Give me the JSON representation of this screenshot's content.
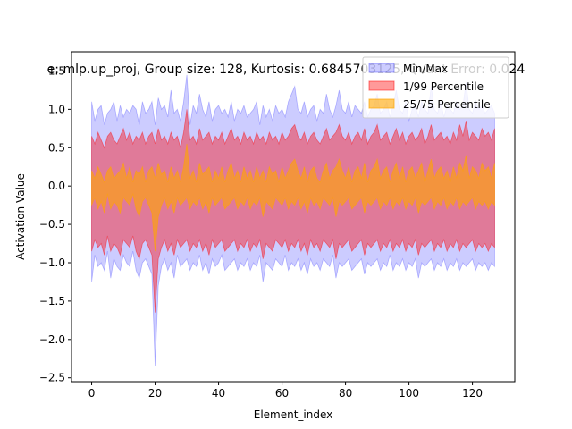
{
  "chart_data": {
    "type": "area",
    "title": "e: mlp.up_proj,  Group size: 128, Kurtosis: 0.6845703125, Quant Error: 0.024",
    "xlabel": "Element_index",
    "ylabel": "Activation Value",
    "xlim": [
      -6.35,
      133.35
    ],
    "ylim": [
      -2.55,
      1.75
    ],
    "xticks": [
      0,
      20,
      40,
      60,
      80,
      100,
      120
    ],
    "yticks": [
      -2.5,
      -2.0,
      -1.5,
      -1.0,
      -0.5,
      0.0,
      0.5,
      1.0,
      1.5
    ],
    "ytick_labels": [
      "−2.5",
      "−2.0",
      "−1.5",
      "−1.0",
      "−0.5",
      "0.0",
      "0.5",
      "1.0",
      "1.5"
    ],
    "grid": false,
    "legend_position": "upper-right",
    "series": [
      {
        "name": "Min/Max",
        "color": "#0000ff",
        "opacity": 0.2,
        "upper": [
          1.1,
          0.85,
          1.0,
          1.05,
          0.8,
          0.95,
          1.0,
          1.1,
          0.85,
          1.05,
          0.9,
          1.0,
          0.95,
          1.05,
          1.0,
          0.8,
          1.1,
          0.95,
          1.0,
          1.1,
          0.8,
          1.15,
          1.0,
          1.05,
          0.9,
          1.25,
          0.95,
          1.0,
          0.85,
          1.1,
          1.45,
          0.8,
          1.05,
          0.95,
          1.2,
          1.0,
          0.9,
          1.1,
          0.85,
          1.0,
          1.05,
          0.95,
          1.0,
          0.9,
          1.1,
          0.85,
          1.0,
          0.95,
          1.05,
          0.9,
          0.95,
          1.0,
          1.1,
          0.8,
          1.05,
          0.9,
          1.0,
          0.85,
          1.05,
          0.95,
          1.0,
          0.9,
          1.1,
          1.2,
          1.3,
          1.0,
          0.95,
          1.1,
          0.9,
          1.0,
          1.05,
          0.85,
          1.0,
          0.95,
          1.2,
          1.0,
          0.9,
          1.05,
          1.25,
          1.0,
          0.95,
          1.1,
          0.9,
          1.05,
          1.0,
          0.95,
          1.1,
          0.9,
          1.0,
          1.05,
          1.2,
          0.95,
          1.0,
          1.1,
          0.9,
          1.05,
          1.25,
          1.0,
          0.95,
          1.1,
          0.85,
          1.0,
          1.05,
          0.9,
          1.1,
          1.0,
          0.95,
          1.3,
          1.0,
          0.95,
          1.1,
          0.9,
          1.05,
          1.0,
          0.95,
          1.1,
          1.0,
          1.05,
          1.35,
          1.0,
          0.95,
          1.1,
          1.0,
          1.05,
          0.95,
          1.0,
          1.05,
          0.95
        ],
        "lower": [
          -1.25,
          -0.9,
          -1.05,
          -1.0,
          -1.1,
          -0.85,
          -1.2,
          -0.95,
          -1.05,
          -1.1,
          -0.9,
          -1.0,
          -1.05,
          -0.85,
          -1.1,
          -1.2,
          -1.0,
          -0.95,
          -1.05,
          -1.15,
          -2.35,
          -1.3,
          -1.05,
          -0.95,
          -1.1,
          -1.0,
          -1.2,
          -0.9,
          -1.05,
          -1.0,
          -0.95,
          -1.1,
          -1.0,
          -1.05,
          -0.9,
          -1.1,
          -1.0,
          -1.15,
          -0.95,
          -1.05,
          -1.0,
          -0.9,
          -1.1,
          -1.05,
          -1.0,
          -0.95,
          -1.1,
          -1.0,
          -1.05,
          -0.95,
          -1.1,
          -1.0,
          -1.05,
          -0.9,
          -1.25,
          -1.0,
          -1.05,
          -1.1,
          -0.95,
          -1.0,
          -1.05,
          -0.9,
          -1.1,
          -1.0,
          -1.05,
          -0.95,
          -1.1,
          -1.0,
          -1.15,
          -0.95,
          -1.05,
          -1.0,
          -1.1,
          -0.95,
          -1.0,
          -1.05,
          -0.9,
          -1.2,
          -1.0,
          -1.05,
          -1.0,
          -0.95,
          -1.1,
          -1.05,
          -1.0,
          -0.95,
          -1.15,
          -1.0,
          -1.05,
          -1.0,
          -0.95,
          -1.1,
          -1.0,
          -1.05,
          -0.9,
          -1.1,
          -1.0,
          -1.05,
          -0.95,
          -1.1,
          -1.0,
          -1.05,
          -0.95,
          -1.2,
          -1.0,
          -1.05,
          -1.0,
          -0.95,
          -1.1,
          -1.0,
          -1.05,
          -0.95,
          -1.1,
          -1.0,
          -1.05,
          -0.95,
          -1.1,
          -1.0,
          -1.05,
          -1.0,
          -0.95,
          -1.1,
          -1.0,
          -1.05,
          -1.0,
          -1.1,
          -1.0,
          -1.05
        ]
      },
      {
        "name": "1/99 Percentile",
        "color": "#ff0000",
        "opacity": 0.4,
        "upper": [
          0.65,
          0.55,
          0.7,
          0.6,
          0.5,
          0.65,
          0.7,
          0.6,
          0.55,
          0.65,
          0.75,
          0.6,
          0.7,
          0.55,
          0.65,
          0.6,
          0.7,
          0.55,
          0.65,
          0.7,
          0.55,
          0.75,
          0.6,
          0.65,
          0.55,
          0.7,
          0.6,
          0.65,
          0.5,
          0.7,
          1.0,
          0.6,
          0.65,
          0.55,
          0.75,
          0.6,
          0.65,
          0.7,
          0.55,
          0.65,
          0.6,
          0.7,
          0.55,
          0.65,
          0.75,
          0.6,
          0.65,
          0.55,
          0.7,
          0.6,
          0.65,
          0.55,
          0.7,
          0.6,
          0.65,
          0.55,
          0.7,
          0.6,
          0.65,
          0.55,
          0.7,
          0.6,
          0.65,
          0.75,
          0.8,
          0.65,
          0.6,
          0.7,
          0.55,
          0.65,
          0.7,
          0.6,
          0.55,
          0.65,
          0.75,
          0.6,
          0.65,
          0.7,
          0.8,
          0.65,
          0.6,
          0.7,
          0.55,
          0.65,
          0.7,
          0.6,
          0.75,
          0.55,
          0.65,
          0.7,
          0.8,
          0.6,
          0.65,
          0.7,
          0.55,
          0.65,
          0.75,
          0.6,
          0.7,
          0.55,
          0.65,
          0.7,
          0.6,
          0.65,
          0.75,
          0.55,
          0.65,
          0.8,
          0.6,
          0.65,
          0.7,
          0.6,
          0.65,
          0.55,
          0.7,
          0.6,
          0.8,
          0.65,
          0.85,
          0.6,
          0.7,
          0.65,
          0.6,
          0.75,
          0.65,
          0.7,
          0.6,
          0.75
        ],
        "lower": [
          -0.85,
          -0.7,
          -0.8,
          -0.75,
          -0.9,
          -0.65,
          -0.85,
          -0.75,
          -0.8,
          -0.9,
          -0.7,
          -0.75,
          -0.8,
          -0.65,
          -0.85,
          -0.95,
          -0.75,
          -0.7,
          -0.8,
          -0.9,
          -1.65,
          -0.95,
          -0.8,
          -0.7,
          -0.85,
          -0.75,
          -0.9,
          -0.7,
          -0.8,
          -0.75,
          -0.7,
          -0.85,
          -0.75,
          -0.8,
          -0.7,
          -0.85,
          -0.75,
          -0.9,
          -0.7,
          -0.8,
          -0.75,
          -0.7,
          -0.85,
          -0.8,
          -0.75,
          -0.7,
          -0.85,
          -0.75,
          -0.8,
          -0.7,
          -0.85,
          -0.75,
          -0.8,
          -0.7,
          -0.95,
          -0.75,
          -0.8,
          -0.85,
          -0.7,
          -0.75,
          -0.8,
          -0.7,
          -0.85,
          -0.75,
          -0.8,
          -0.7,
          -0.85,
          -0.75,
          -0.9,
          -0.7,
          -0.8,
          -0.75,
          -0.85,
          -0.7,
          -0.75,
          -0.8,
          -0.7,
          -0.95,
          -0.75,
          -0.8,
          -0.75,
          -0.7,
          -0.85,
          -0.8,
          -0.75,
          -0.7,
          -0.9,
          -0.75,
          -0.8,
          -0.75,
          -0.7,
          -0.85,
          -0.75,
          -0.8,
          -0.7,
          -0.85,
          -0.75,
          -0.8,
          -0.7,
          -0.85,
          -0.75,
          -0.8,
          -0.7,
          -0.9,
          -0.75,
          -0.8,
          -0.75,
          -0.7,
          -0.85,
          -0.75,
          -0.8,
          -0.7,
          -0.85,
          -0.75,
          -0.8,
          -0.7,
          -0.85,
          -0.75,
          -0.8,
          -0.75,
          -0.7,
          -0.85,
          -0.75,
          -0.8,
          -0.75,
          -0.85,
          -0.75,
          -0.8
        ]
      },
      {
        "name": "25/75 Percentile",
        "color": "#ffa500",
        "opacity": 0.6,
        "upper": [
          0.2,
          0.1,
          0.25,
          0.15,
          0.05,
          0.2,
          0.25,
          0.1,
          0.15,
          0.2,
          0.3,
          0.1,
          0.25,
          0.05,
          0.2,
          0.15,
          0.25,
          0.05,
          0.2,
          0.25,
          0.1,
          0.3,
          0.15,
          0.2,
          0.05,
          0.25,
          0.1,
          0.2,
          0.05,
          0.25,
          0.55,
          0.1,
          0.2,
          0.05,
          0.3,
          0.15,
          0.2,
          0.25,
          0.05,
          0.2,
          0.1,
          0.25,
          0.05,
          0.2,
          0.3,
          0.1,
          0.2,
          0.05,
          0.25,
          0.1,
          0.2,
          0.05,
          0.25,
          0.1,
          0.2,
          0.05,
          0.25,
          0.15,
          0.2,
          0.05,
          0.25,
          0.1,
          0.2,
          0.3,
          0.35,
          0.2,
          0.1,
          0.25,
          0.05,
          0.2,
          0.25,
          0.1,
          0.05,
          0.2,
          0.3,
          0.1,
          0.2,
          0.25,
          0.35,
          0.2,
          0.1,
          0.25,
          0.05,
          0.2,
          0.25,
          0.1,
          0.3,
          0.05,
          0.2,
          0.25,
          0.35,
          0.1,
          0.2,
          0.25,
          0.05,
          0.2,
          0.3,
          0.1,
          0.25,
          0.05,
          0.2,
          0.25,
          0.1,
          0.2,
          0.3,
          0.05,
          0.2,
          0.35,
          0.1,
          0.2,
          0.25,
          0.1,
          0.2,
          0.05,
          0.25,
          0.1,
          0.3,
          0.2,
          0.4,
          0.1,
          0.25,
          0.2,
          0.1,
          0.3,
          0.2,
          0.25,
          0.1,
          0.3
        ],
        "lower": [
          -0.25,
          -0.15,
          -0.3,
          -0.2,
          -0.35,
          -0.1,
          -0.3,
          -0.2,
          -0.25,
          -0.35,
          -0.15,
          -0.2,
          -0.25,
          -0.1,
          -0.3,
          -0.4,
          -0.2,
          -0.15,
          -0.25,
          -0.35,
          -0.85,
          -0.4,
          -0.25,
          -0.15,
          -0.3,
          -0.2,
          -0.35,
          -0.15,
          -0.25,
          -0.2,
          -0.15,
          -0.3,
          -0.2,
          -0.25,
          -0.15,
          -0.3,
          -0.2,
          -0.35,
          -0.15,
          -0.25,
          -0.2,
          -0.15,
          -0.3,
          -0.25,
          -0.2,
          -0.15,
          -0.3,
          -0.2,
          -0.25,
          -0.15,
          -0.3,
          -0.2,
          -0.25,
          -0.15,
          -0.4,
          -0.2,
          -0.25,
          -0.3,
          -0.15,
          -0.2,
          -0.25,
          -0.15,
          -0.3,
          -0.2,
          -0.25,
          -0.15,
          -0.3,
          -0.2,
          -0.35,
          -0.15,
          -0.25,
          -0.2,
          -0.3,
          -0.15,
          -0.2,
          -0.25,
          -0.15,
          -0.4,
          -0.2,
          -0.25,
          -0.2,
          -0.15,
          -0.3,
          -0.25,
          -0.2,
          -0.15,
          -0.35,
          -0.2,
          -0.25,
          -0.2,
          -0.15,
          -0.3,
          -0.2,
          -0.25,
          -0.15,
          -0.3,
          -0.2,
          -0.25,
          -0.15,
          -0.3,
          -0.2,
          -0.25,
          -0.15,
          -0.35,
          -0.2,
          -0.25,
          -0.2,
          -0.15,
          -0.3,
          -0.2,
          -0.25,
          -0.15,
          -0.3,
          -0.2,
          -0.25,
          -0.15,
          -0.3,
          -0.2,
          -0.25,
          -0.2,
          -0.15,
          -0.3,
          -0.2,
          -0.25,
          -0.2,
          -0.3,
          -0.2,
          -0.25
        ]
      }
    ]
  }
}
